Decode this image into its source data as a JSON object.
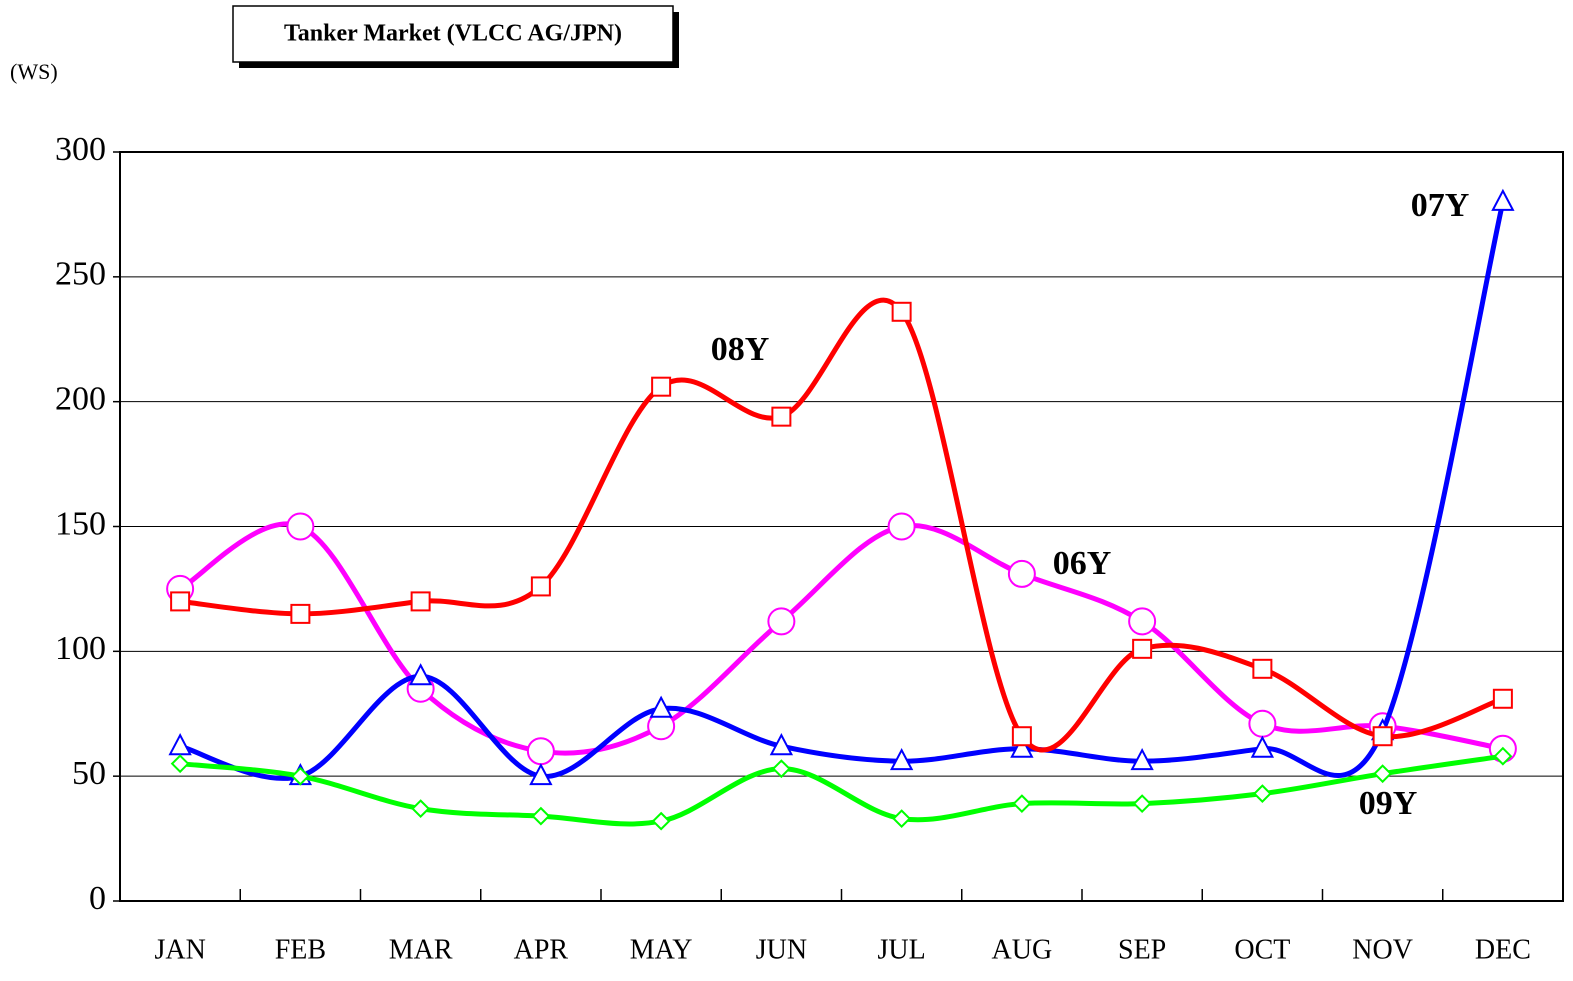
{
  "chart_data": {
    "type": "line",
    "title": "Tanker Market (VLCC AG/JPN)",
    "y_label": "(WS)",
    "categories": [
      "JAN",
      "FEB",
      "MAR",
      "APR",
      "MAY",
      "JUN",
      "JUL",
      "AUG",
      "SEP",
      "OCT",
      "NOV",
      "DEC"
    ],
    "series": [
      {
        "name": "06Y",
        "color": "#ff00ff",
        "marker": "circle",
        "values": [
          125,
          150,
          85,
          60,
          70,
          112,
          150,
          131,
          112,
          71,
          70,
          61
        ]
      },
      {
        "name": "07Y",
        "color": "#0000ff",
        "marker": "triangle",
        "values": [
          62,
          50,
          90,
          50,
          77,
          62,
          56,
          61,
          56,
          61,
          68,
          280
        ]
      },
      {
        "name": "08Y",
        "color": "#ff0000",
        "marker": "square",
        "values": [
          120,
          115,
          120,
          126,
          206,
          194,
          236,
          66,
          101,
          93,
          66,
          81
        ]
      },
      {
        "name": "09Y",
        "color": "#00ff00",
        "marker": "diamond",
        "values": [
          55,
          50,
          37,
          34,
          32,
          53,
          33,
          39,
          39,
          43,
          51,
          58
        ]
      }
    ],
    "ylim": [
      0,
      300
    ],
    "yticks": [
      0,
      50,
      100,
      150,
      200,
      250,
      300
    ],
    "grid": true
  }
}
